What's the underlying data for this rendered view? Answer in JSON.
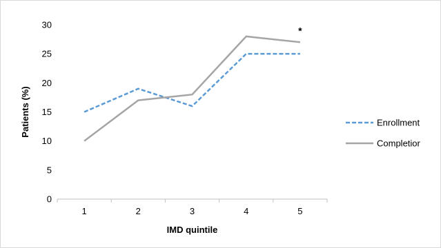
{
  "chart_data": {
    "type": "line",
    "x": [
      1,
      2,
      3,
      4,
      5
    ],
    "xlabel": "IMD quintile",
    "ylabel": "Patients (%)",
    "ylim": [
      0,
      30
    ],
    "yticks": [
      0,
      5,
      10,
      15,
      20,
      25,
      30
    ],
    "grid": false,
    "legend_position": "right",
    "series": [
      {
        "name": "Enrollment",
        "values": [
          15,
          19,
          16,
          25,
          25
        ],
        "color": "#5b9bd5",
        "dash": "dashed"
      },
      {
        "name": "Completior",
        "values": [
          10,
          17,
          18,
          28,
          27
        ],
        "color": "#a5a5a5",
        "dash": "solid"
      }
    ],
    "annotations": [
      {
        "x": 5,
        "y": 27,
        "text": "*"
      }
    ]
  }
}
